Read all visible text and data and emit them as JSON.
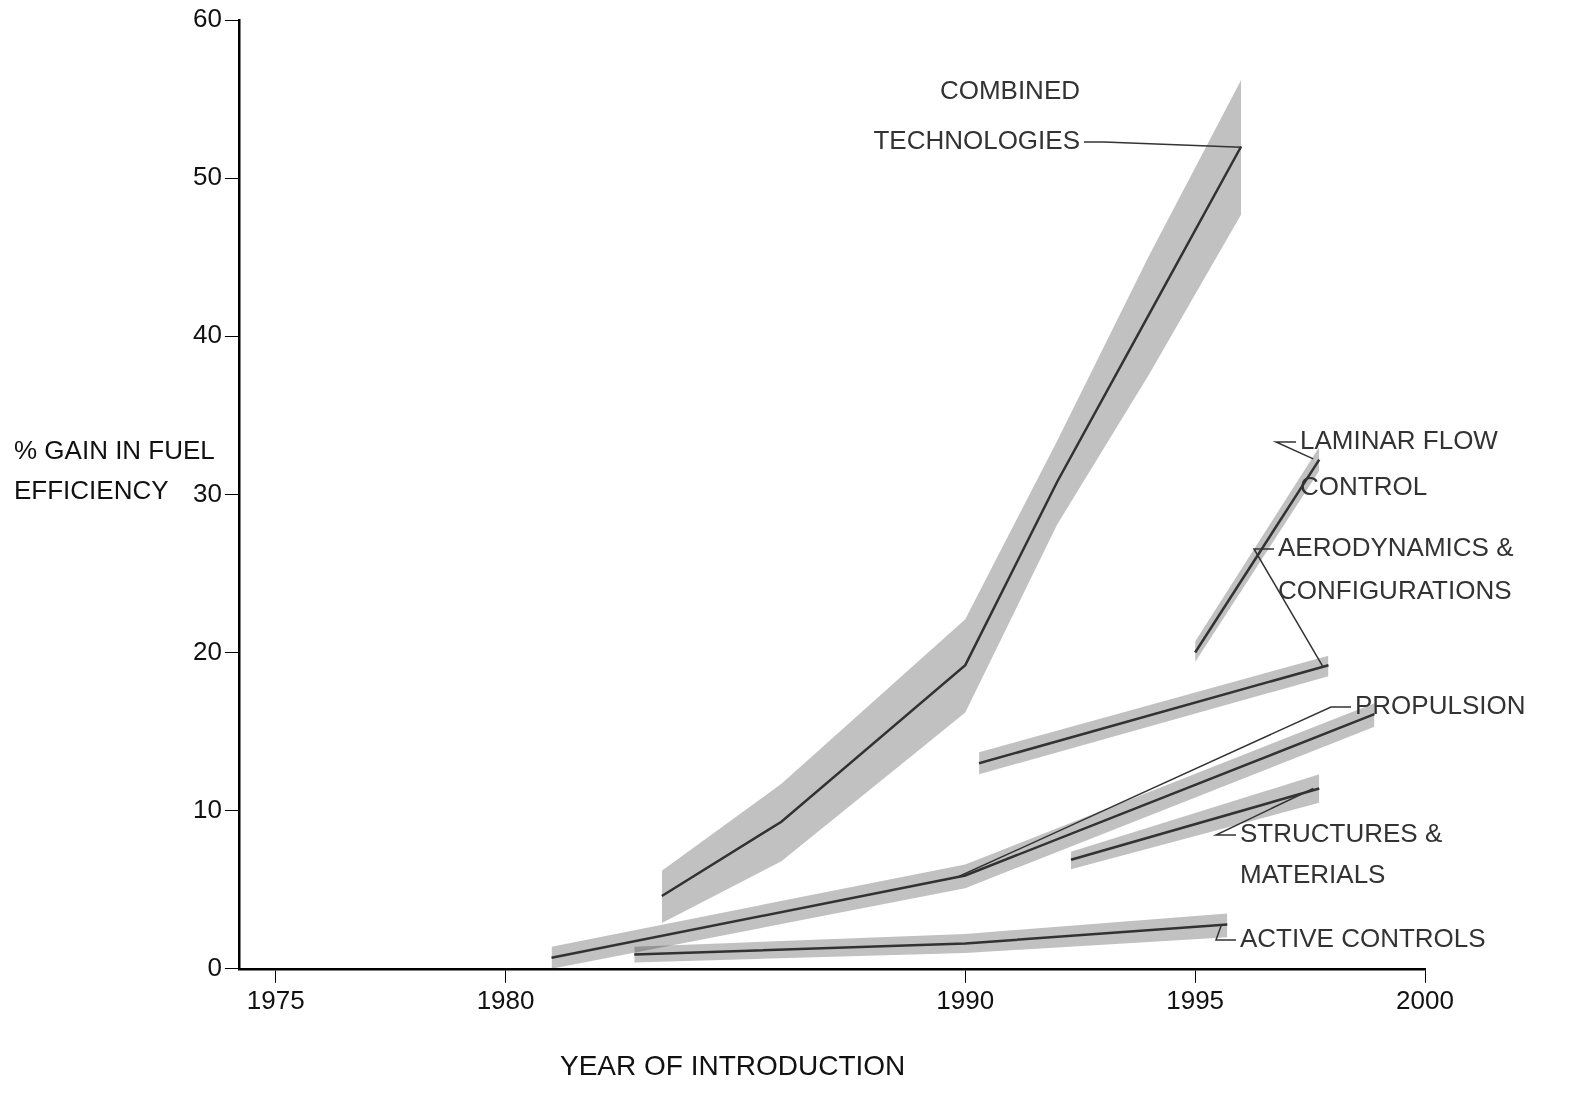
{
  "chart_data": {
    "type": "line",
    "xlabel": "YEAR OF INTRODUCTION",
    "ylabel": "% GAIN IN FUEL EFFICIENCY",
    "xlim": [
      1974.2,
      2000
    ],
    "xticks": [
      1975,
      1980,
      1990,
      1995,
      2000
    ],
    "ylim": [
      0,
      60
    ],
    "yticks": [
      0,
      10,
      20,
      30,
      40,
      50,
      60
    ],
    "grid": false,
    "series": [
      {
        "name": "COMBINED TECHNOLOGIES",
        "color": "#333333",
        "x": [
          1983.4,
          1986,
          1990,
          1992,
          1994,
          1996
        ],
        "lower": [
          2.9,
          6.8,
          16.2,
          28.1,
          37.6,
          47.7
        ],
        "upper": [
          6.2,
          11.7,
          22.1,
          33.4,
          45.1,
          56.2
        ],
        "values": [
          4.6,
          9.3,
          19.2,
          30.8,
          41.4,
          52
        ]
      },
      {
        "name": "LAMINAR FLOW CONTROL",
        "color": "#333333",
        "x": [
          1995,
          1997.7
        ],
        "lower": [
          19.4,
          31.5
        ],
        "upper": [
          20.7,
          33
        ],
        "values": [
          20,
          32.2
        ]
      },
      {
        "name": "AERODYNAMICS & CONFIGURATIONS",
        "color": "#333333",
        "x": [
          1990.3,
          1997.9
        ],
        "lower": [
          12.3,
          18.5
        ],
        "upper": [
          13.7,
          19.8
        ],
        "values": [
          13,
          19.2
        ]
      },
      {
        "name": "PROPULSION",
        "color": "#333333",
        "x": [
          1981,
          1990,
          1998.9
        ],
        "lower": [
          0,
          5.1,
          15.3
        ],
        "upper": [
          1.4,
          6.6,
          16.8
        ],
        "values": [
          0.7,
          5.9,
          16.1
        ]
      },
      {
        "name": "STRUCTURES & MATERIALS",
        "color": "#333333",
        "x": [
          1992.3,
          1997.7
        ],
        "lower": [
          6.3,
          10.5
        ],
        "upper": [
          7.4,
          12.3
        ],
        "values": [
          6.9,
          11.4
        ]
      },
      {
        "name": "ACTIVE CONTROLS",
        "color": "#333333",
        "x": [
          1982.8,
          1990,
          1995.7
        ],
        "lower": [
          0.4,
          1,
          2
        ],
        "upper": [
          1.4,
          2.2,
          3.5
        ],
        "values": [
          0.9,
          1.6,
          2.8
        ]
      }
    ]
  }
}
